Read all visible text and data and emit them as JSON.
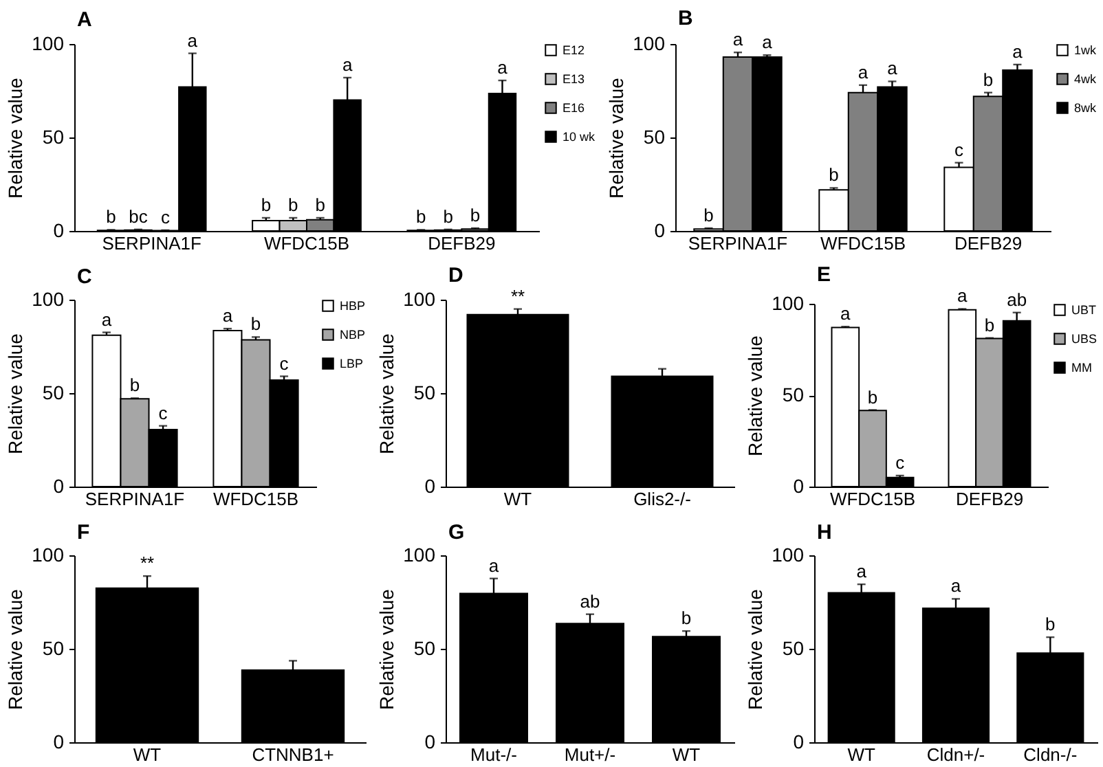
{
  "chart_data": [
    {
      "type": "bar",
      "title": "A",
      "ylabel": "Relative value",
      "categories": [
        "SERPINA1F",
        "WFDC15B",
        "DEFB29"
      ],
      "ylim": [
        0,
        100
      ],
      "yticks": [
        0,
        50,
        100
      ],
      "legend": "right",
      "series": [
        {
          "name": "E12",
          "color": "#ffffff",
          "values": [
            0.3,
            5.5,
            0.3
          ],
          "errors": [
            0.3,
            1.5,
            0.3
          ],
          "value_labels": [
            "b",
            "b",
            "b"
          ]
        },
        {
          "name": "E13",
          "color": "#c0c0c0",
          "values": [
            0.5,
            5.5,
            0.5
          ],
          "errors": [
            0.3,
            1.5,
            0.3
          ],
          "value_labels": [
            "bc",
            "b",
            "b"
          ]
        },
        {
          "name": "E16",
          "color": "#808080",
          "values": [
            0.2,
            6,
            1
          ],
          "errors": [
            0.2,
            1,
            0.5
          ],
          "value_labels": [
            "c",
            "b",
            "b"
          ]
        },
        {
          "name": "10 wk",
          "color": "#000000",
          "values": [
            77,
            70,
            73.5
          ],
          "errors": [
            18,
            12,
            7
          ],
          "value_labels": [
            "a",
            "a",
            "a"
          ]
        }
      ]
    },
    {
      "type": "bar",
      "title": "B",
      "ylabel": "Relative value",
      "categories": [
        "SERPINA1F",
        "WFDC15B",
        "DEFB29"
      ],
      "ylim": [
        0,
        100
      ],
      "yticks": [
        0,
        50,
        100
      ],
      "legend": "right",
      "series": [
        {
          "name": "1wk",
          "color": "#ffffff",
          "values": [
            1,
            22,
            34
          ],
          "errors": [
            0.5,
            1,
            2.5
          ],
          "value_labels": [
            "b",
            "b",
            "c"
          ]
        },
        {
          "name": "4wk",
          "color": "#808080",
          "values": [
            93,
            74,
            72
          ],
          "errors": [
            2.5,
            4,
            2
          ],
          "value_labels": [
            "a",
            "a",
            "b"
          ]
        },
        {
          "name": "8wk",
          "color": "#000000",
          "values": [
            93,
            77,
            86
          ],
          "errors": [
            1,
            3,
            3
          ],
          "value_labels": [
            "a",
            "a",
            "a"
          ]
        }
      ]
    },
    {
      "type": "bar",
      "title": "C",
      "ylabel": "Relative value",
      "categories": [
        "SERPINA1F",
        "WFDC15B"
      ],
      "ylim": [
        0,
        100
      ],
      "yticks": [
        0,
        50,
        100
      ],
      "legend": "right",
      "series": [
        {
          "name": "HBP",
          "color": "#ffffff",
          "values": [
            81,
            83.5
          ],
          "errors": [
            1.5,
            1
          ],
          "value_labels": [
            "a",
            "a"
          ]
        },
        {
          "name": "NBP",
          "color": "#a6a6a6",
          "values": [
            47,
            78.5
          ],
          "errors": [
            0.3,
            1.5
          ],
          "value_labels": [
            "b",
            "b"
          ]
        },
        {
          "name": "LBP",
          "color": "#000000",
          "values": [
            30.5,
            57
          ],
          "errors": [
            2,
            2
          ],
          "value_labels": [
            "c",
            "c"
          ]
        }
      ]
    },
    {
      "type": "bar",
      "title": "D",
      "ylabel": "Relative value",
      "categories": [
        "WT",
        "Glis2-/-"
      ],
      "ylim": [
        0,
        100
      ],
      "yticks": [
        0,
        50,
        100
      ],
      "series": [
        {
          "color": "#000000",
          "values": [
            92,
            59
          ],
          "errors": [
            3,
            4
          ],
          "value_labels": [
            "**",
            null
          ]
        }
      ]
    },
    {
      "type": "bar",
      "title": "E",
      "ylabel": "Relative value",
      "categories": [
        "WFDC15B",
        "DEFB29"
      ],
      "ylim": [
        0,
        100
      ],
      "yticks": [
        0,
        50,
        100
      ],
      "legend": "right",
      "series": [
        {
          "name": "UBT",
          "color": "#ffffff",
          "values": [
            87,
            96.7
          ],
          "errors": [
            0.5,
            0.5
          ],
          "value_labels": [
            "a",
            "a"
          ]
        },
        {
          "name": "UBS",
          "color": "#a6a6a6",
          "values": [
            41.6,
            81
          ],
          "errors": [
            0.3,
            0.3
          ],
          "value_labels": [
            "b",
            "b"
          ]
        },
        {
          "name": "MM",
          "color": "#000000",
          "values": [
            5,
            90.7
          ],
          "errors": [
            1,
            4.5
          ],
          "value_labels": [
            "c",
            "ab"
          ]
        }
      ]
    },
    {
      "type": "bar",
      "title": "F",
      "ylabel": "Relative value",
      "categories": [
        "WT",
        "CTNNB1+"
      ],
      "ylim": [
        0,
        100
      ],
      "yticks": [
        0,
        50,
        100
      ],
      "series": [
        {
          "color": "#000000",
          "values": [
            82.4,
            38.6
          ],
          "errors": [
            6.5,
            5
          ],
          "value_labels": [
            "**",
            null
          ]
        }
      ]
    },
    {
      "type": "bar",
      "title": "G",
      "ylabel": "Relative value",
      "categories": [
        "Mut-/-",
        "Mut+/-",
        "WT"
      ],
      "ylim": [
        0,
        100
      ],
      "yticks": [
        0,
        50,
        100
      ],
      "series": [
        {
          "color": "#000000",
          "values": [
            79.6,
            63.5,
            56.5
          ],
          "errors": [
            8,
            5,
            3
          ],
          "value_labels": [
            "a",
            "ab",
            "b"
          ]
        }
      ]
    },
    {
      "type": "bar",
      "title": "H",
      "ylabel": "Relative value",
      "categories": [
        "WT",
        "Cldn+/-",
        "Cldn-/-"
      ],
      "ylim": [
        0,
        100
      ],
      "yticks": [
        0,
        50,
        100
      ],
      "series": [
        {
          "color": "#000000",
          "values": [
            80,
            71.7,
            47.7
          ],
          "errors": [
            4.5,
            5,
            8.5
          ],
          "value_labels": [
            "a",
            "a",
            "b"
          ]
        }
      ]
    }
  ]
}
